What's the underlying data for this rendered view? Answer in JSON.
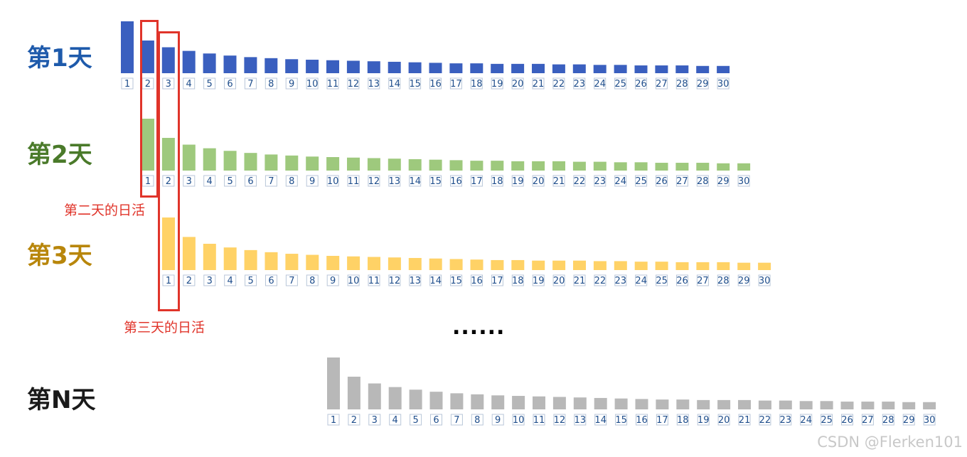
{
  "chart_data": [
    {
      "type": "bar",
      "title": "第1天",
      "color": "#3a5fbf",
      "title_color": "#1e5aab",
      "categories": [
        1,
        2,
        3,
        4,
        5,
        6,
        7,
        8,
        9,
        10,
        11,
        12,
        13,
        14,
        15,
        16,
        17,
        18,
        19,
        20,
        21,
        22,
        23,
        24,
        25,
        26,
        27,
        28,
        29,
        30
      ],
      "values": [
        100,
        63,
        50,
        43,
        38,
        34,
        31,
        29,
        27,
        26,
        25,
        24,
        23,
        22,
        21,
        20,
        19,
        19,
        18,
        18,
        18,
        17,
        17,
        16,
        16,
        15,
        15,
        15,
        14,
        14
      ]
    },
    {
      "type": "bar",
      "title": "第2天",
      "color": "#9ec97d",
      "title_color": "#4a7a2a",
      "categories": [
        1,
        2,
        3,
        4,
        5,
        6,
        7,
        8,
        9,
        10,
        11,
        12,
        13,
        14,
        15,
        16,
        17,
        18,
        19,
        20,
        21,
        22,
        23,
        24,
        25,
        26,
        27,
        28,
        29,
        30
      ],
      "values": [
        100,
        63,
        50,
        43,
        38,
        34,
        31,
        29,
        27,
        26,
        25,
        24,
        23,
        22,
        21,
        20,
        19,
        19,
        18,
        18,
        18,
        17,
        17,
        16,
        16,
        15,
        15,
        15,
        14,
        14
      ]
    },
    {
      "type": "bar",
      "title": "第3天",
      "color": "#ffd266",
      "title_color": "#b8860b",
      "categories": [
        1,
        2,
        3,
        4,
        5,
        6,
        7,
        8,
        9,
        10,
        11,
        12,
        13,
        14,
        15,
        16,
        17,
        18,
        19,
        20,
        21,
        22,
        23,
        24,
        25,
        26,
        27,
        28,
        29,
        30
      ],
      "values": [
        100,
        63,
        50,
        43,
        38,
        34,
        31,
        29,
        27,
        26,
        25,
        24,
        23,
        22,
        21,
        20,
        19,
        19,
        18,
        18,
        18,
        17,
        17,
        16,
        16,
        15,
        15,
        15,
        14,
        14
      ]
    },
    {
      "type": "bar",
      "title": "第N天",
      "color": "#b8b8b8",
      "title_color": "#1a1a1a",
      "categories": [
        1,
        2,
        3,
        4,
        5,
        6,
        7,
        8,
        9,
        10,
        11,
        12,
        13,
        14,
        15,
        16,
        17,
        18,
        19,
        20,
        21,
        22,
        23,
        24,
        25,
        26,
        27,
        28,
        29,
        30
      ],
      "values": [
        100,
        63,
        50,
        43,
        38,
        34,
        31,
        29,
        27,
        26,
        25,
        24,
        23,
        22,
        21,
        20,
        19,
        19,
        18,
        18,
        18,
        17,
        17,
        16,
        16,
        15,
        15,
        15,
        14,
        14
      ]
    }
  ],
  "annotations": {
    "day2_active": "第二天的日活",
    "day3_active": "第三天的日活",
    "annot_color": "#e0342a"
  },
  "ellipsis": "......",
  "watermark": "CSDN @Flerken101"
}
